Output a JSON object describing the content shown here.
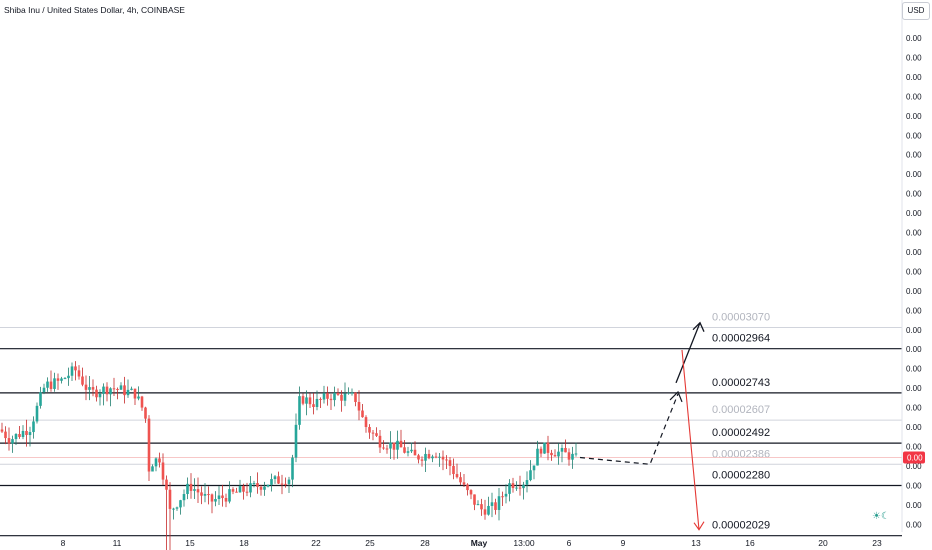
{
  "header": {
    "symbol_title": "Shiba Inu / United States Dollar, 4h, COINBASE",
    "currency_button": "USD"
  },
  "price_axis": {
    "tick_label": "0.00",
    "current_price_label": "0.00"
  },
  "colors": {
    "up": "#26a69a",
    "down": "#ef5350",
    "wick_up": "#1e7f6e",
    "wick_down": "#c62828",
    "line": "#131722",
    "faint_line": "#d1d4dc",
    "faint_text": "#b2b5be",
    "current_price": "#f23645",
    "bull_arrow": "#131722",
    "bear_arrow": "#e53935"
  },
  "chart_data": {
    "type": "candlestick",
    "title": "Shiba Inu / United States Dollar, 4h, COINBASE",
    "x_ticks": [
      "8",
      "11",
      "15",
      "18",
      "22",
      "25",
      "28",
      "May",
      "13:00",
      "6",
      "9",
      "13",
      "16",
      "20",
      "23"
    ],
    "y_unit": "USD",
    "y_range": [
      1.98e-05,
      3.1e-05
    ],
    "levels": [
      {
        "value": "0.00003070",
        "style": "faint"
      },
      {
        "value": "0.00002964",
        "style": "bold"
      },
      {
        "value": "0.00002743",
        "style": "bold"
      },
      {
        "value": "0.00002607",
        "style": "faint"
      },
      {
        "value": "0.00002492",
        "style": "bold"
      },
      {
        "value": "0.00002386",
        "style": "faint"
      },
      {
        "value": "0.00002280",
        "style": "bold"
      },
      {
        "value": "0.00002029",
        "style": "bold"
      }
    ],
    "current_price": 2.42e-05,
    "projection": {
      "dashed_path": [
        [
          2.42e-05,
          0.0
        ],
        [
          2.39e-05,
          0.5
        ],
        [
          2.738e-05,
          0.8
        ]
      ],
      "bull_target": 2.964e-05,
      "bear_target": 2.029e-05
    }
  }
}
